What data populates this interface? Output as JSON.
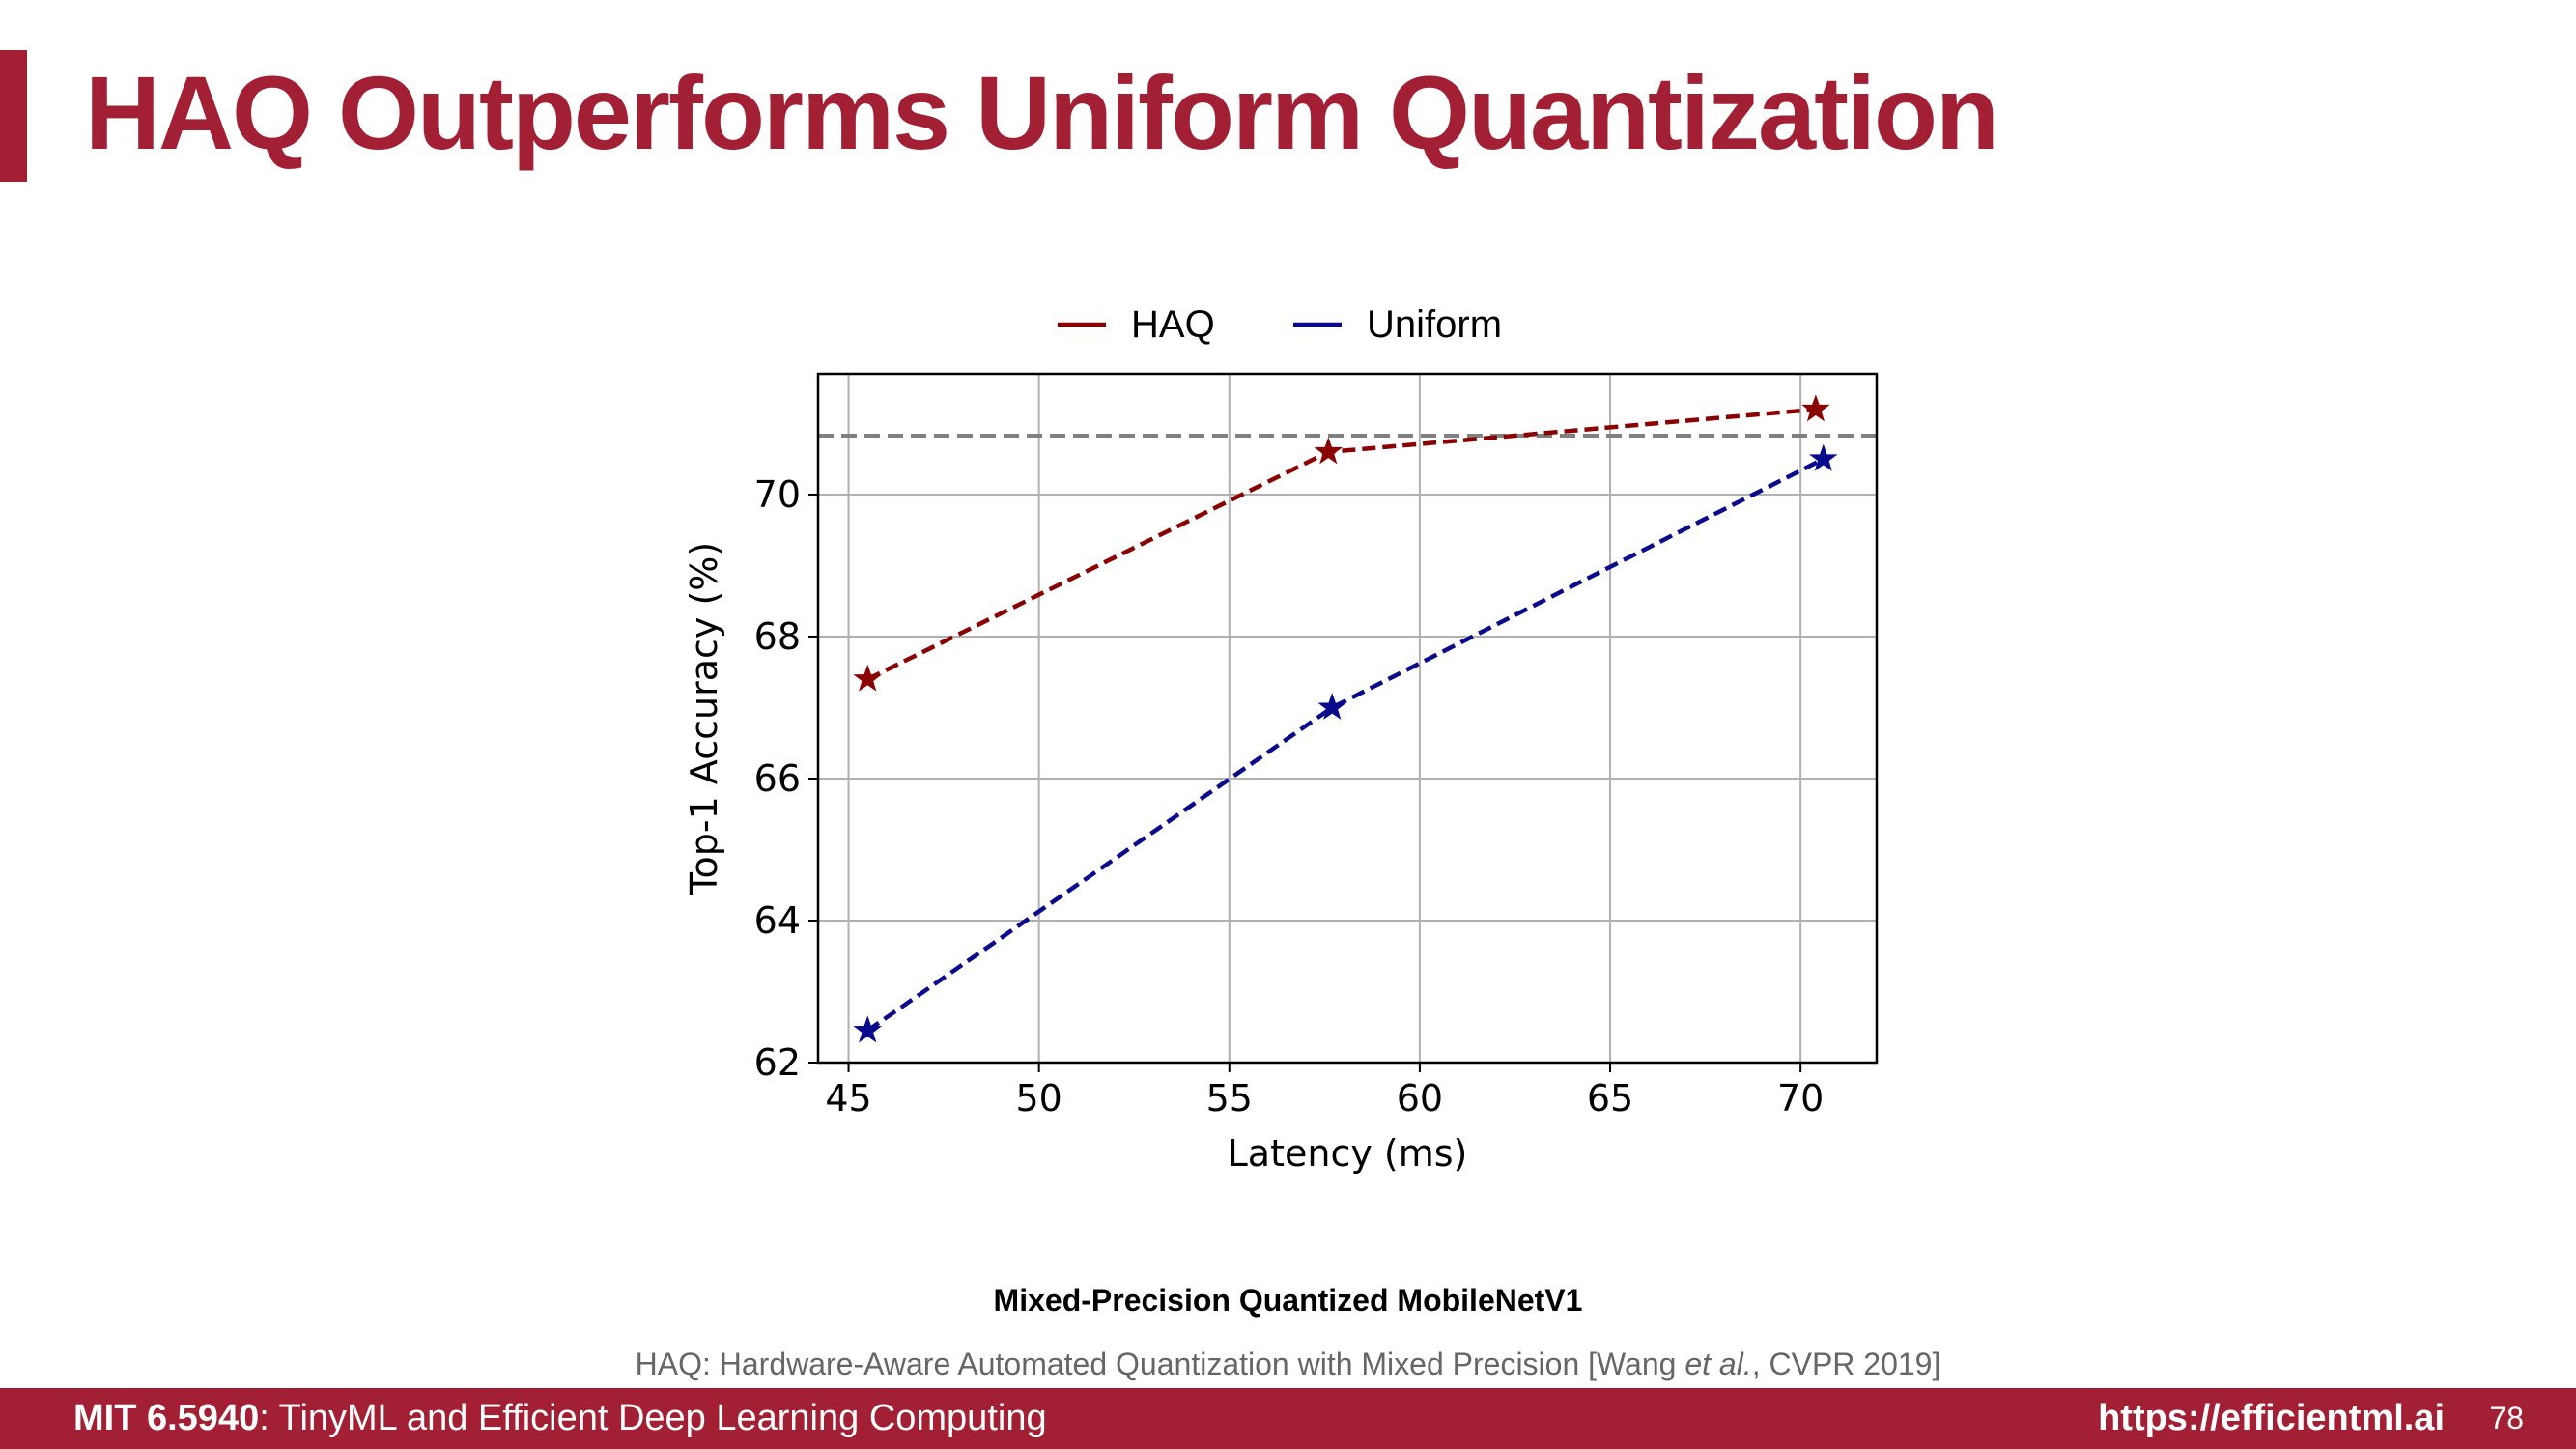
{
  "slide": {
    "title": "HAQ Outperforms Uniform Quantization",
    "caption": "Mixed-Precision Quantized MobileNetV1",
    "citation_prefix": "HAQ: Hardware-Aware Automated Quantization with Mixed Precision [Wang ",
    "citation_etal": "et al.",
    "citation_suffix": ", CVPR 2019]",
    "footer_course": "MIT 6.5940",
    "footer_course_title": ": TinyML and Efficient Deep Learning Computing",
    "footer_url": "https://efficientml.ai",
    "page_number": "78"
  },
  "chart_data": {
    "type": "line",
    "xlabel": "Latency (ms)",
    "ylabel": "Top-1 Accuracy (%)",
    "xlim": [
      44.2,
      72
    ],
    "ylim": [
      62,
      71.7
    ],
    "xticks": [
      45,
      50,
      55,
      60,
      65,
      70
    ],
    "yticks": [
      62,
      64,
      66,
      68,
      70
    ],
    "grid": true,
    "legend_position": "top-center",
    "reference_line": {
      "y": 70.83,
      "color": "#808080",
      "style": "dashed"
    },
    "series": [
      {
        "name": "HAQ",
        "color": "#8b0000",
        "marker": "star",
        "x": [
          45.5,
          57.6,
          70.4
        ],
        "y": [
          67.4,
          70.6,
          71.2
        ]
      },
      {
        "name": "Uniform",
        "color": "#0a0a8c",
        "marker": "star",
        "x": [
          45.5,
          57.7,
          70.6
        ],
        "y": [
          62.45,
          67.0,
          70.5
        ]
      }
    ]
  }
}
